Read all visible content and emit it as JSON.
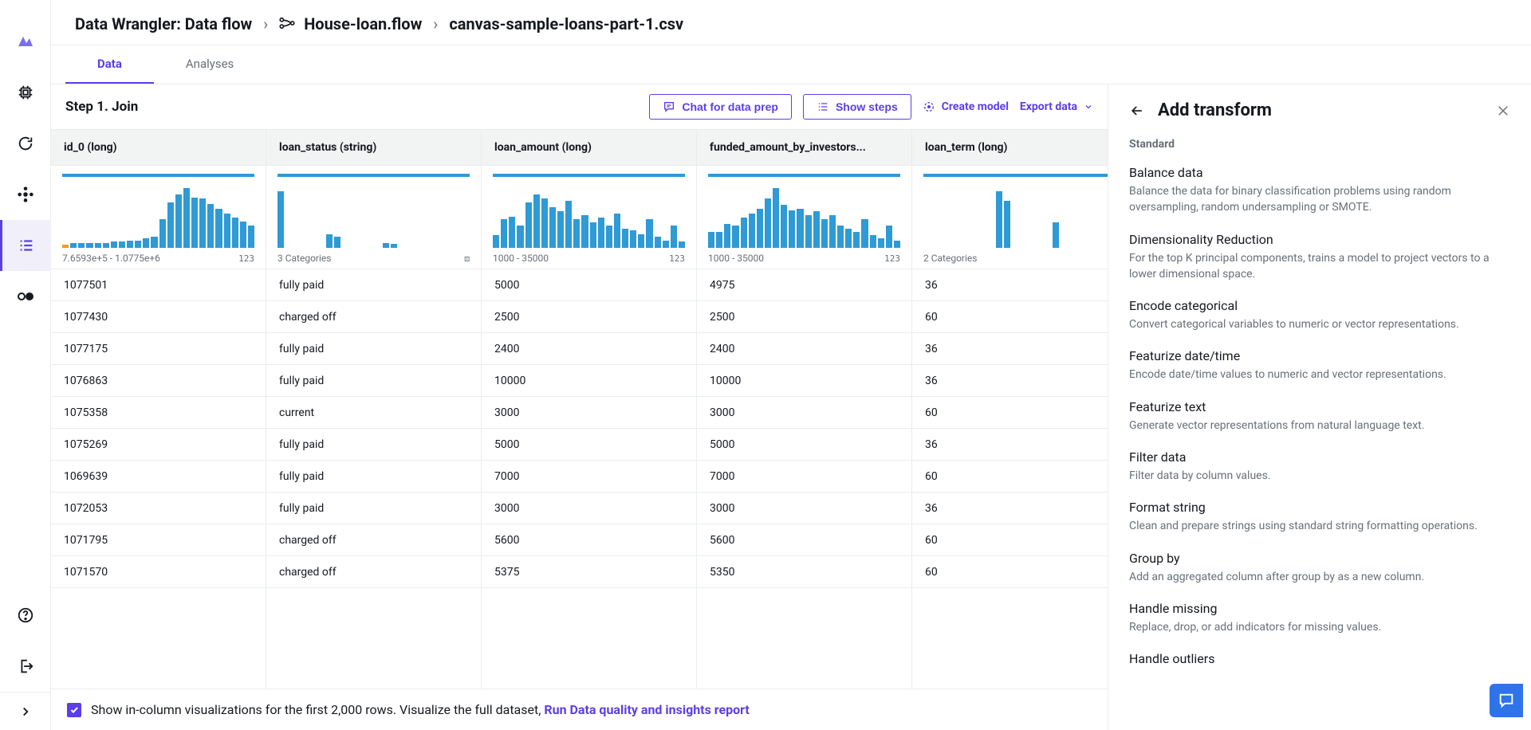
{
  "breadcrumb": {
    "root": "Data Wrangler: Data flow",
    "flow": "House-loan.flow",
    "file": "canvas-sample-loans-part-1.csv"
  },
  "tabs": {
    "data": "Data",
    "analyses": "Analyses"
  },
  "toolbar": {
    "step_title": "Step 1. Join",
    "chat": "Chat for data prep",
    "show_steps": "Show steps",
    "create_model": "Create model",
    "export": "Export data"
  },
  "columns": [
    {
      "header": "id_0 (long)",
      "hist_pct": [
        5,
        8,
        8,
        8,
        8,
        8,
        10,
        10,
        12,
        12,
        15,
        18,
        45,
        72,
        85,
        95,
        80,
        78,
        70,
        62,
        55,
        48,
        42,
        35
      ],
      "orange_idx": 0,
      "summary": "7.6593e+5 - 1.0775e+6",
      "type_badge": "123",
      "cells": [
        "1077501",
        "1077430",
        "1077175",
        "1076863",
        "1075358",
        "1075269",
        "1069639",
        "1072053",
        "1071795",
        "1071570"
      ]
    },
    {
      "header": "loan_status (string)",
      "hist_pct": [
        90,
        0,
        0,
        0,
        0,
        0,
        22,
        18,
        0,
        0,
        0,
        0,
        0,
        8,
        6,
        0,
        0,
        0,
        0,
        0,
        0,
        0,
        0,
        0
      ],
      "summary": "3 Categories",
      "type_badge": "⚄",
      "cells": [
        "fully paid",
        "charged off",
        "fully paid",
        "fully paid",
        "current",
        "fully paid",
        "fully paid",
        "fully paid",
        "charged off",
        "charged off"
      ]
    },
    {
      "header": "loan_amount (long)",
      "hist_pct": [
        20,
        45,
        50,
        35,
        72,
        85,
        78,
        65,
        58,
        75,
        45,
        52,
        40,
        48,
        35,
        55,
        30,
        28,
        22,
        45,
        18,
        12,
        35,
        10
      ],
      "summary": "1000 - 35000",
      "type_badge": "123",
      "cells": [
        "5000",
        "2500",
        "2400",
        "10000",
        "3000",
        "5000",
        "7000",
        "3000",
        "5600",
        "5375"
      ]
    },
    {
      "header": "funded_amount_by_investors...",
      "hist_pct": [
        25,
        25,
        38,
        35,
        48,
        55,
        62,
        78,
        95,
        68,
        60,
        62,
        52,
        58,
        45,
        52,
        35,
        30,
        25,
        45,
        20,
        15,
        35,
        12
      ],
      "summary": "1000 - 35000",
      "type_badge": "123",
      "cells": [
        "4975",
        "2500",
        "2400",
        "10000",
        "3000",
        "5000",
        "7000",
        "3000",
        "5600",
        "5350"
      ]
    },
    {
      "header": "loan_term (long)",
      "hist_pct": [
        0,
        0,
        0,
        0,
        0,
        0,
        0,
        0,
        0,
        90,
        75,
        0,
        0,
        0,
        0,
        0,
        40,
        0,
        0,
        0,
        0,
        0,
        0,
        0
      ],
      "summary": "2 Categories",
      "type_badge": "",
      "cells": [
        "36",
        "60",
        "36",
        "36",
        "60",
        "36",
        "60",
        "36",
        "60",
        "60"
      ]
    }
  ],
  "footer": {
    "text": "Show in-column visualizations for the first 2,000 rows. Visualize the full dataset, ",
    "link": "Run Data quality and insights report"
  },
  "panel": {
    "title": "Add transform",
    "section": "Standard",
    "items": [
      {
        "t": "Balance data",
        "d": "Balance the data for binary classification problems using random oversampling, random undersampling or SMOTE."
      },
      {
        "t": "Dimensionality Reduction",
        "d": "For the top K principal components, trains a model to project vectors to a lower dimensional space."
      },
      {
        "t": "Encode categorical",
        "d": "Convert categorical variables to numeric or vector representations."
      },
      {
        "t": "Featurize date/time",
        "d": "Encode date/time values to numeric and vector representations."
      },
      {
        "t": "Featurize text",
        "d": "Generate vector representations from natural language text."
      },
      {
        "t": "Filter data",
        "d": "Filter data by column values."
      },
      {
        "t": "Format string",
        "d": "Clean and prepare strings using standard string formatting operations."
      },
      {
        "t": "Group by",
        "d": "Add an aggregated column after group by as a new column."
      },
      {
        "t": "Handle missing",
        "d": "Replace, drop, or add indicators for missing values."
      },
      {
        "t": "Handle outliers",
        "d": ""
      }
    ]
  },
  "colors": {
    "accent": "#5c3ee8",
    "bar": "#2e9ad6",
    "orange": "#ff9900",
    "border": "#eaeded",
    "muted": "#687078"
  }
}
